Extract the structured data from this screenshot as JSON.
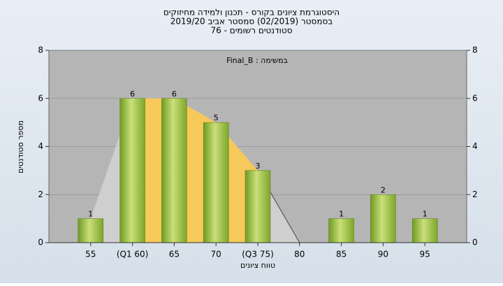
{
  "chart_data": {
    "type": "bar",
    "title": "היסטוגרמת ציונים בקורס - תכנון ולמידה מחיזוקים",
    "subtitle": "בסמסטר  (02/2019)  סמסטר אביב 2019/20",
    "subtitle2": "סטודנטים רשומים - 76",
    "annotation": "Final_B : במשימה",
    "x_label": "טווח ציונים",
    "y_label": "מספר סטודנטים",
    "categories": [
      "55",
      "(Q1 60)",
      "65",
      "70",
      "(Q3 75)",
      "80",
      "85",
      "90",
      "95"
    ],
    "values": [
      1,
      6,
      6,
      5,
      3,
      0,
      1,
      2,
      1
    ],
    "value_labels": [
      "1",
      "6",
      "6",
      "5",
      "3",
      null,
      "1",
      "2",
      "1"
    ],
    "color": "#8fb83a",
    "ylim": [
      0,
      8
    ],
    "yticks": [
      0,
      2,
      4,
      6,
      8
    ]
  }
}
